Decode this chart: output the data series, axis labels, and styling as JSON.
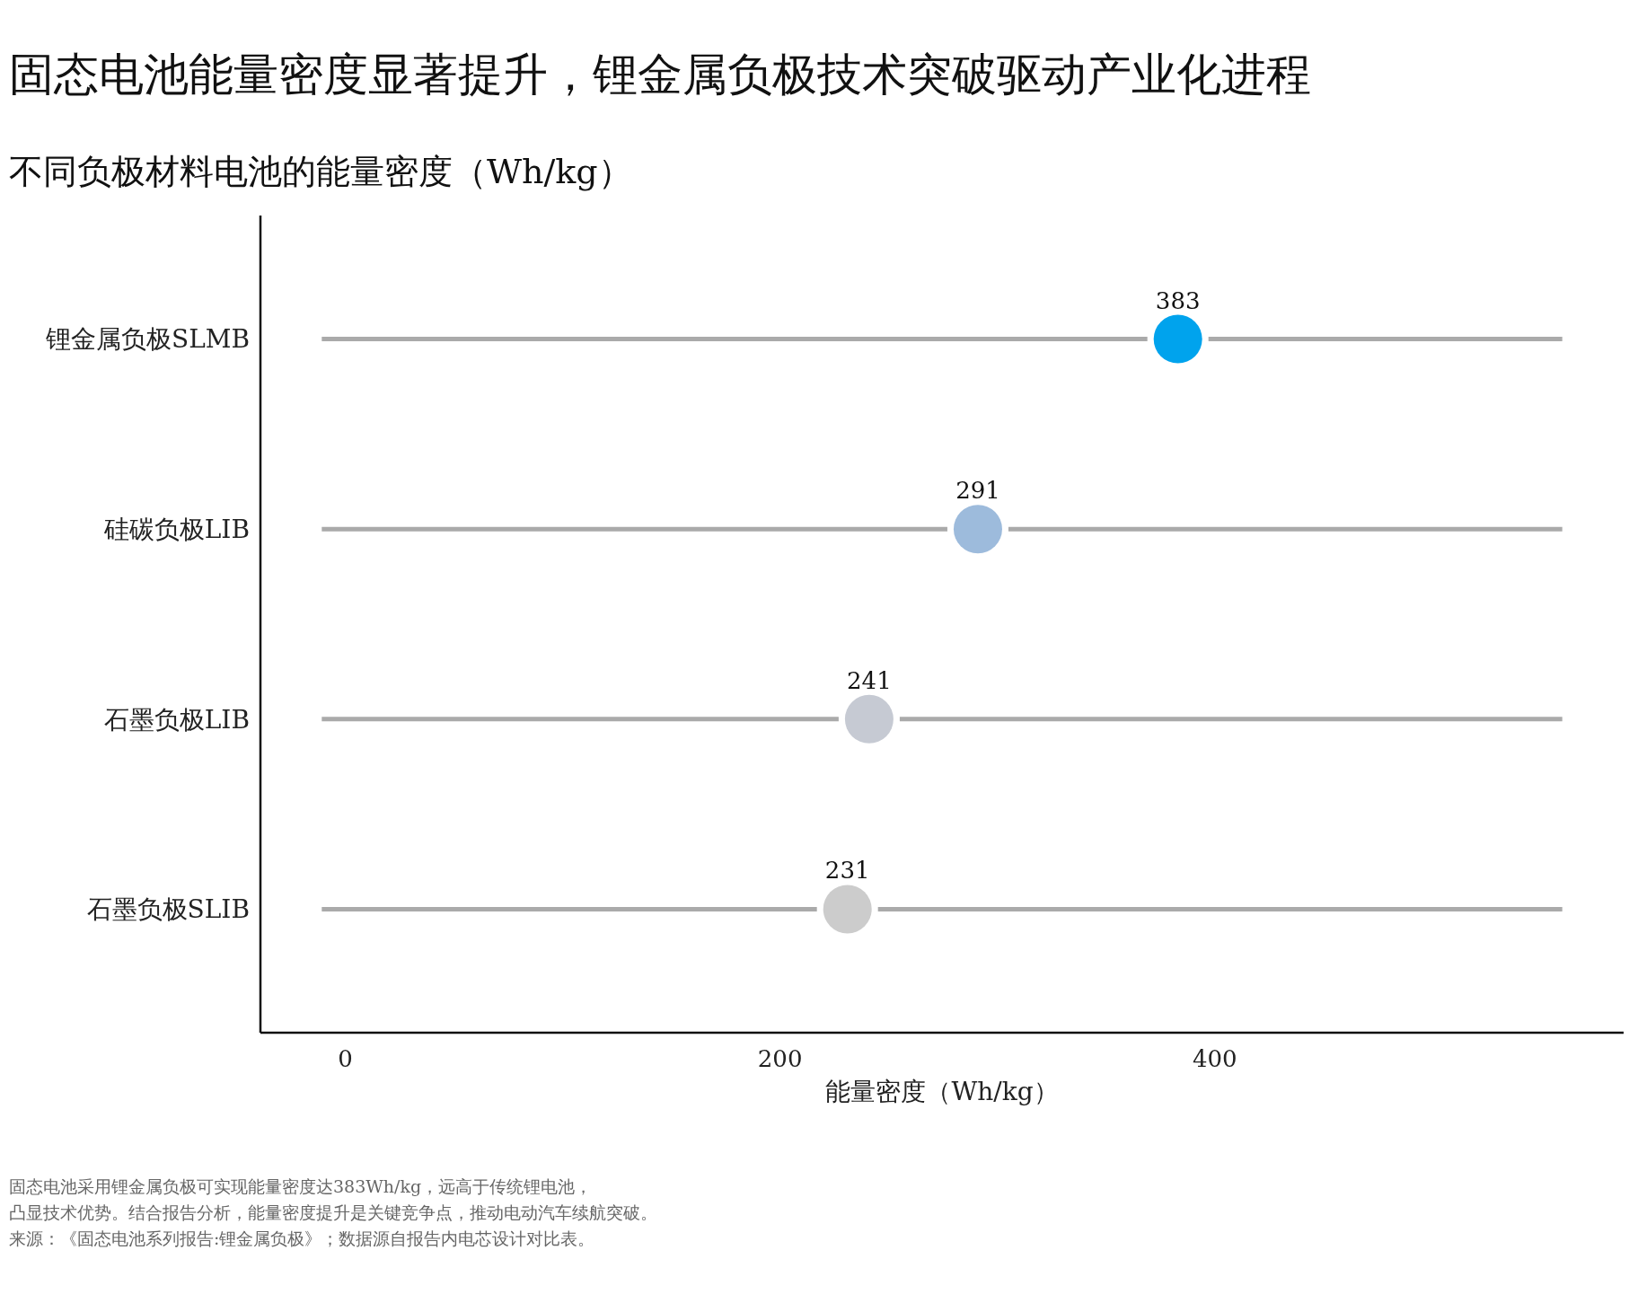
{
  "chart_data": {
    "type": "scatter",
    "orientation": "horizontal",
    "title": "固态电池能量密度显著提升，锂金属负极技术突破驱动产业化进程",
    "subtitle": "不同负极材料电池的能量密度（Wh/kg）",
    "xlabel": "能量密度（Wh/kg）",
    "categories": [
      "锂金属负极SLMB",
      "硅碳负极LIB",
      "石墨负极LIB",
      "石墨负极SLIB"
    ],
    "values": [
      383,
      291,
      241,
      231
    ],
    "colors": [
      "#00a3ed",
      "#9dbbdc",
      "#c6cad3",
      "#cccccc"
    ],
    "xlim": [
      -39,
      588
    ],
    "xticks": [
      0,
      200,
      400
    ],
    "grid": "y",
    "data_labels": true,
    "annotations": [
      "固态电池采用锂金属负极可实现能量密度达383Wh/kg，远高于传统锂电池，",
      "凸显技术优势。结合报告分析，能量密度提升是关键竞争点，推动电动汽车续航突破。",
      "来源：《固态电池系列报告:锂金属负极》；数据源自报告内电芯设计对比表。"
    ]
  }
}
